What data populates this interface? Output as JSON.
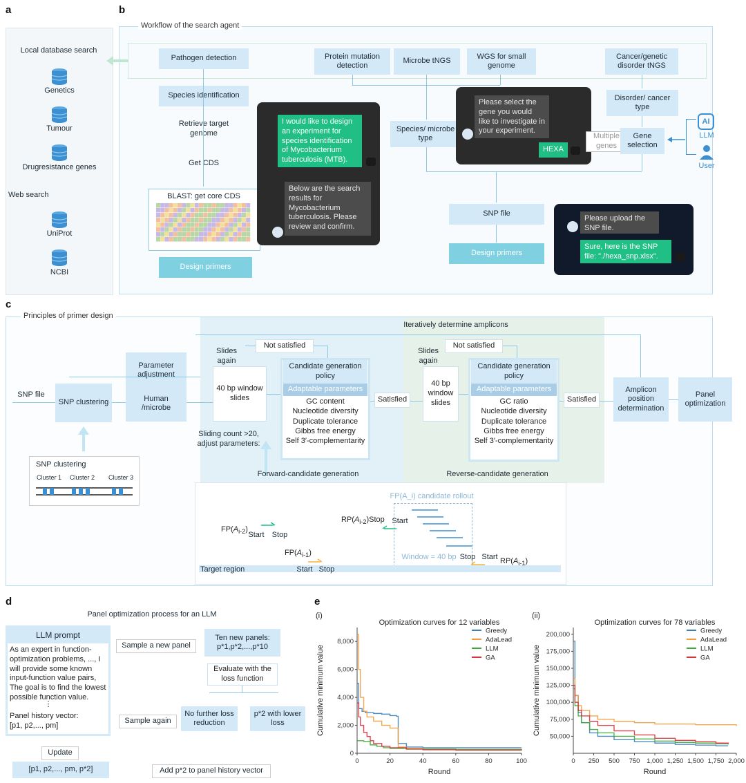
{
  "panels": {
    "a": "a",
    "b": "b",
    "c": "c",
    "d": "d",
    "e": "e"
  },
  "a": {
    "local_title": "Local database search",
    "dbs": [
      "Genetics",
      "Tumour",
      "Drugresistance genes"
    ],
    "web_title": "Web search",
    "web": [
      "UniProt",
      "NCBI"
    ]
  },
  "b": {
    "title": "Workflow of the search agent",
    "pathogen": "Pathogen detection",
    "species_id": "Species identification",
    "retrieve": "Retrieve target genome",
    "get_cds": "Get CDS",
    "blast": "BLAST: get core CDS",
    "design1": "Design primers",
    "chat1_user": "I would like to design an experiment for species identification of Mycobacterium tuberculosis (MTB).",
    "chat1_bot": "Below are the search results for Mycobacterium tuberculosis. Please review and confirm.",
    "protein": "Protein mutation detection",
    "microbe": "Microbe tNGS",
    "wgs": "WGS for small genome",
    "cancer": "Cancer/genetic disorder tNGS",
    "species_type": "Species/ microbe type",
    "chat2_bot": "Please select the gene you would like to investigate in your experiment.",
    "chat2_user": "HEXA",
    "disorder": "Disorder/ cancer type",
    "multiple": "Multiple genes",
    "gene_sel": "Gene selection",
    "llm": "LLM",
    "user": "User",
    "ai": "AI",
    "snp_file": "SNP file",
    "design2": "Design primers",
    "chat3_bot": "Please upload the SNP file.",
    "chat3_user": "Sure, here is the SNP file: \"./hexa_snp.xlsx\"."
  },
  "c": {
    "title": "Principles of primer design",
    "iter": "Iteratively determine amplicons",
    "snp_file": "SNP file",
    "snp_clust": "SNP clustering",
    "param": "Parameter adjustment",
    "human": "Human /microbe",
    "slides_again": "Slides again",
    "not_sat": "Not satisfied",
    "window": "40 bp window slides",
    "cgp": "Candidate generation policy",
    "adapt": "Adaptable parameters",
    "fwd_params": [
      "GC content",
      "Nucleotide diversity",
      "Duplicate tolerance",
      "Gibbs free energy",
      "Self 3′-complementarity"
    ],
    "rev_params": [
      "GC ratio",
      "Nucleotide diversity",
      "Duplicate tolerance",
      "Gibbs free energy",
      "Self 3′-complementarity"
    ],
    "satisfied": "Satisfied",
    "sliding_note": "Sliding count >20, adjust parameters:",
    "fwd_gen": "Forward-candidate generation",
    "rev_gen": "Reverse-candidate generation",
    "amplicon": "Amplicon position determination",
    "panel_opt": "Panel optimization",
    "snp_inset_title": "SNP clustering",
    "clusters": [
      "Cluster 1",
      "Cluster 2",
      "Cluster 3"
    ],
    "rollout": "FP(A_i) candidate rollout",
    "window40": "Window = 40 bp",
    "target": "Target region",
    "start": "Start",
    "stop": "Stop"
  },
  "d": {
    "title": "Panel optimization process for an LLM",
    "prompt_head": "LLM prompt",
    "prompt_body": "As an expert in function-optimization problems, ..., I will provide some known input-function value pairs, The goal is to find the lowest possible function value.",
    "ellipsis": "⋮",
    "history": "Panel history vector:",
    "history_vec": "[p1, p2,..., pm]",
    "sample_new": "Sample a new panel",
    "ten": "Ten new panels:",
    "ten_vec": "p*1,p*2,...,p*10",
    "evaluate": "Evaluate with the loss function",
    "no_further": "No further loss reduction",
    "lower": "p*2 with lower loss",
    "sample_again": "Sample again",
    "update": "Update",
    "final_vec": "[p1, p2,..., pm, p*2]",
    "add": "Add p*2 to panel history vector"
  },
  "colors": {
    "greedy": "#3b7fb8",
    "adalead": "#f39c3d",
    "llm": "#3aaa3a",
    "ga": "#d8323c"
  },
  "chart_data": [
    {
      "type": "line",
      "panel_label": "(i)",
      "title": "Optimization curves for 12 variables",
      "xlabel": "Round",
      "ylabel": "Cumulative minimum value",
      "xlim": [
        0,
        100
      ],
      "ylim": [
        0,
        9000
      ],
      "xticks": [
        0,
        20,
        40,
        60,
        80,
        100
      ],
      "yticks": [
        0,
        2000,
        4000,
        6000,
        8000
      ],
      "ytick_labels": [
        "0",
        "2,000",
        "4,000",
        "6,000",
        "8,000"
      ],
      "legend": "top-right",
      "series": [
        {
          "name": "Greedy",
          "color": "#3b7fb8",
          "x": [
            0,
            1,
            3,
            5,
            10,
            15,
            20,
            24,
            25,
            30,
            40,
            60,
            100
          ],
          "y": [
            5000,
            3200,
            3000,
            2900,
            2850,
            2800,
            2700,
            2650,
            700,
            450,
            400,
            400,
            400
          ]
        },
        {
          "name": "AdaLead",
          "color": "#f39c3d",
          "x": [
            0,
            1,
            2,
            4,
            6,
            10,
            15,
            20,
            25,
            30,
            40,
            60,
            100
          ],
          "y": [
            8500,
            6000,
            4000,
            3000,
            2600,
            2300,
            2000,
            1800,
            450,
            350,
            300,
            250,
            250
          ]
        },
        {
          "name": "LLM",
          "color": "#3aaa3a",
          "x": [
            0,
            2,
            4,
            8,
            12,
            16,
            20,
            30,
            40,
            60,
            100
          ],
          "y": [
            900,
            900,
            850,
            600,
            500,
            400,
            350,
            300,
            300,
            280,
            250
          ]
        },
        {
          "name": "GA",
          "color": "#d8323c",
          "x": [
            0,
            1,
            2,
            4,
            6,
            8,
            10,
            15,
            20,
            30,
            40,
            60,
            100
          ],
          "y": [
            3600,
            2600,
            2000,
            1500,
            1200,
            900,
            700,
            500,
            400,
            300,
            250,
            220,
            200
          ]
        }
      ]
    },
    {
      "type": "line",
      "panel_label": "(ii)",
      "title": "Optimization curves for 78 variables",
      "xlabel": "Round",
      "ylabel": "Cumulative minimum value",
      "xlim": [
        0,
        2000
      ],
      "ylim": [
        25000,
        210000
      ],
      "xticks": [
        0,
        250,
        500,
        750,
        1000,
        1250,
        1500,
        1750,
        2000
      ],
      "xtick_labels": [
        "0",
        "250",
        "500",
        "750",
        "1,000",
        "1,250",
        "1,500",
        "1,750",
        "2,000"
      ],
      "yticks": [
        50000,
        75000,
        100000,
        125000,
        150000,
        175000,
        200000
      ],
      "ytick_labels": [
        "50,000",
        "75,000",
        "100,000",
        "125,000",
        "150,000",
        "175,000",
        "200,000"
      ],
      "legend": "top-right",
      "series": [
        {
          "name": "Greedy",
          "color": "#3b7fb8",
          "x": [
            0,
            20,
            60,
            100,
            200,
            300,
            500,
            750,
            1000,
            1250,
            1500,
            1750,
            1900
          ],
          "y": [
            190000,
            110000,
            85000,
            70000,
            55000,
            50000,
            45000,
            42000,
            40000,
            38000,
            37000,
            36000,
            36000
          ]
        },
        {
          "name": "AdaLead",
          "color": "#f39c3d",
          "x": [
            0,
            20,
            60,
            100,
            200,
            300,
            500,
            750,
            1000,
            1250,
            1500,
            1750,
            2000
          ],
          "y": [
            135000,
            110000,
            95000,
            88000,
            80000,
            75000,
            72000,
            70000,
            68000,
            68000,
            67000,
            67000,
            65000
          ]
        },
        {
          "name": "LLM",
          "color": "#3aaa3a",
          "x": [
            0,
            20,
            60,
            100,
            200,
            300,
            500,
            750,
            1000,
            1250,
            1500,
            1750,
            1900
          ],
          "y": [
            120000,
            95000,
            80000,
            70000,
            60000,
            55000,
            50000,
            46000,
            43000,
            41000,
            40000,
            39000,
            38000
          ]
        },
        {
          "name": "GA",
          "color": "#d8323c",
          "x": [
            0,
            20,
            60,
            100,
            200,
            300,
            500,
            750,
            1000,
            1250,
            1500,
            1750,
            1900
          ],
          "y": [
            125000,
            100000,
            88000,
            80000,
            72000,
            66000,
            58000,
            52000,
            47000,
            44000,
            42000,
            40000,
            39000
          ]
        }
      ]
    }
  ]
}
